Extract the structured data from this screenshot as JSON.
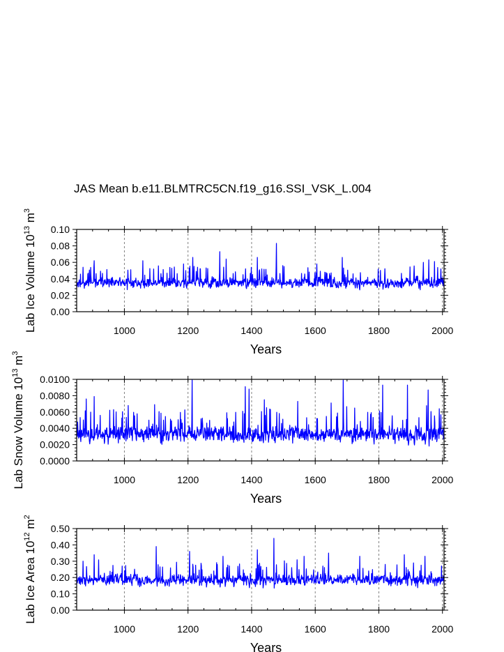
{
  "title": "JAS Mean b.e11.BLMTRC5CN.f19_g16.SSI_VSK_L.004",
  "series_color": "#0000ff",
  "chart_data": [
    {
      "type": "line",
      "ylabel": {
        "main": "Lab Ice Volume 10",
        "exp": "13",
        "unit": " m",
        "unit_exp": "3"
      },
      "xlabel": "Years",
      "xlim": [
        850,
        2005
      ],
      "ylim": [
        0.0,
        0.1
      ],
      "xticks": [
        1000,
        1200,
        1400,
        1600,
        1800,
        2000
      ],
      "yticks": [
        0.0,
        0.02,
        0.04,
        0.06,
        0.08,
        0.1
      ],
      "ytick_labels": [
        "0.00",
        "0.02",
        "0.04",
        "0.06",
        "0.08",
        "0.10"
      ],
      "grid": "vertical dashed at major x ticks",
      "gen": {
        "mean": 0.035,
        "amp": 0.007,
        "seed": 11,
        "ymin": 0.015,
        "ymax": 0.085,
        "spikes": [
          [
            870,
            0.054
          ],
          [
            905,
            0.062
          ],
          [
            1058,
            0.062
          ],
          [
            1186,
            0.058
          ],
          [
            1215,
            0.066
          ],
          [
            1300,
            0.073
          ],
          [
            1320,
            0.064
          ],
          [
            1418,
            0.066
          ],
          [
            1478,
            0.083
          ],
          [
            1498,
            0.056
          ],
          [
            1605,
            0.058
          ],
          [
            1685,
            0.066
          ],
          [
            1940,
            0.06
          ],
          [
            1957,
            0.063
          ],
          [
            1975,
            0.061
          ],
          [
            1995,
            0.052
          ]
        ]
      }
    },
    {
      "type": "line",
      "ylabel": {
        "main": "Lab Snow Volume 10",
        "exp": "13",
        "unit": " m",
        "unit_exp": "3"
      },
      "xlabel": "Years",
      "xlim": [
        850,
        2005
      ],
      "ylim": [
        0.0,
        0.01
      ],
      "xticks": [
        1000,
        1200,
        1400,
        1600,
        1800,
        2000
      ],
      "yticks": [
        0.0,
        0.002,
        0.004,
        0.006,
        0.008,
        0.01
      ],
      "ytick_labels": [
        "0.0000",
        "0.0020",
        "0.0040",
        "0.0060",
        "0.0080",
        "0.0100"
      ],
      "grid": "vertical dashed at major x ticks",
      "gen": {
        "mean": 0.0033,
        "amp": 0.0011,
        "seed": 23,
        "ymin": 0.0004,
        "ymax": 0.0099,
        "spikes": [
          [
            880,
            0.0076
          ],
          [
            905,
            0.0079
          ],
          [
            1012,
            0.0068
          ],
          [
            1095,
            0.0069
          ],
          [
            1213,
            0.0099
          ],
          [
            1380,
            0.0091
          ],
          [
            1392,
            0.0088
          ],
          [
            1440,
            0.0075
          ],
          [
            1545,
            0.0073
          ],
          [
            1650,
            0.0071
          ],
          [
            1688,
            0.0099
          ],
          [
            1812,
            0.0093
          ],
          [
            1890,
            0.0093
          ],
          [
            1955,
            0.0087
          ],
          [
            1990,
            0.0064
          ]
        ]
      }
    },
    {
      "type": "line",
      "ylabel": {
        "main": "Lab Ice Area 10",
        "exp": "12",
        "unit": " m",
        "unit_exp": "2"
      },
      "xlabel": "Years",
      "xlim": [
        850,
        2005
      ],
      "ylim": [
        0.0,
        0.5
      ],
      "xticks": [
        1000,
        1200,
        1400,
        1600,
        1800,
        2000
      ],
      "yticks": [
        0.0,
        0.1,
        0.2,
        0.3,
        0.4,
        0.5
      ],
      "ytick_labels": [
        "0.00",
        "0.10",
        "0.20",
        "0.30",
        "0.40",
        "0.50"
      ],
      "grid": "vertical dashed at major x ticks",
      "gen": {
        "mean": 0.185,
        "amp": 0.04,
        "seed": 37,
        "ymin": 0.07,
        "ymax": 0.45,
        "spikes": [
          [
            870,
            0.3
          ],
          [
            905,
            0.34
          ],
          [
            1100,
            0.39
          ],
          [
            1205,
            0.36
          ],
          [
            1310,
            0.33
          ],
          [
            1418,
            0.37
          ],
          [
            1470,
            0.44
          ],
          [
            1565,
            0.33
          ],
          [
            1642,
            0.35
          ],
          [
            1740,
            0.33
          ],
          [
            1880,
            0.34
          ],
          [
            1945,
            0.33
          ]
        ]
      }
    }
  ]
}
